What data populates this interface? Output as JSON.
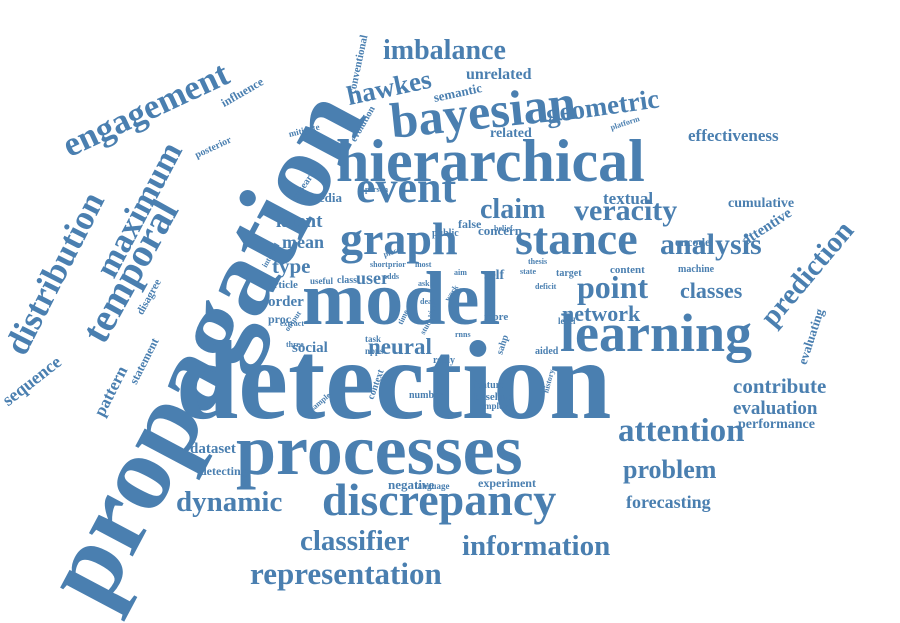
{
  "cloud": {
    "color": "#4a7fb0",
    "words": [
      "propagation",
      "detection",
      "processes",
      "model",
      "hierarchical",
      "bayesian",
      "learning",
      "discrepancy",
      "graph",
      "stance",
      "event",
      "temporal",
      "maximum",
      "engagement",
      "distribution",
      "imbalance",
      "hawkes",
      "geometric",
      "prediction",
      "veracity",
      "analysis",
      "attention",
      "point",
      "representation",
      "information",
      "classifier",
      "dynamic",
      "neural",
      "network",
      "classes",
      "claim",
      "contribute",
      "problem",
      "evaluation",
      "performance",
      "forecasting",
      "effectiveness",
      "sequence",
      "pattern",
      "textual",
      "cumulative",
      "attentive",
      "latent",
      "mean",
      "type",
      "unrelated",
      "related",
      "semantic",
      "influence",
      "conventional",
      "evolution",
      "posterior",
      "mitigate",
      "research",
      "media",
      "user",
      "social",
      "dataset",
      "detecting",
      "negative",
      "experiment",
      "statement",
      "disagree",
      "evaluating",
      "concern",
      "encode",
      "content",
      "machine",
      "order",
      "article",
      "proc",
      "false",
      "public",
      "self",
      "target",
      "level",
      "more",
      "aided",
      "reply",
      "feature",
      "baseline",
      "employ",
      "number",
      "language",
      "task",
      "npps",
      "sample",
      "context",
      "history",
      "useful",
      "class",
      "short",
      "prior",
      "most",
      "aim",
      "interval",
      "platform",
      "person",
      "belief",
      "adds",
      "study",
      "piece",
      "time",
      "deficit",
      "state",
      "thesis",
      "output",
      "three",
      "extract",
      "view",
      "rnns",
      "sahp",
      "work",
      "deal",
      "ask"
    ]
  }
}
